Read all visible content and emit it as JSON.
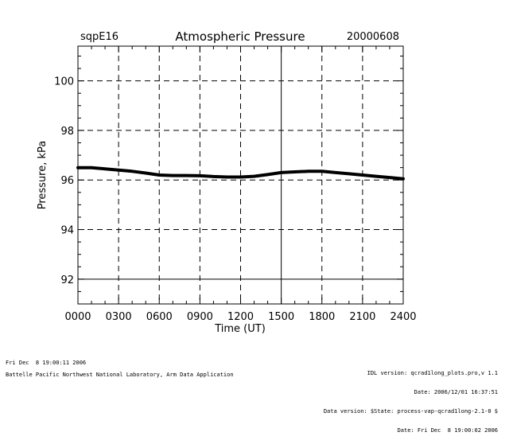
{
  "chart_data": {
    "type": "line",
    "site": "sqpE16",
    "title": "Atmospheric Pressure",
    "date": "20000608",
    "xlabel": "Time (UT)",
    "ylabel": "Pressure, kPa",
    "xlim": [
      0,
      24
    ],
    "ylim": [
      91.0,
      101.4
    ],
    "x_ticks": [
      0,
      3,
      6,
      9,
      12,
      15,
      18,
      21,
      24
    ],
    "x_tick_labels": [
      "0000",
      "0300",
      "0600",
      "0900",
      "1200",
      "1500",
      "1800",
      "2100",
      "2400"
    ],
    "y_ticks": [
      92,
      94,
      96,
      98,
      100
    ],
    "y_tick_labels": [
      "92",
      "94",
      "96",
      "98",
      "100"
    ],
    "grid": "dashed",
    "series": [
      {
        "x": [
          0,
          1,
          2,
          3,
          4,
          5,
          6,
          7,
          8,
          9,
          10,
          11,
          12,
          13,
          14,
          15,
          16,
          17,
          18,
          19,
          20,
          21,
          22,
          23,
          24
        ],
        "y": [
          96.5,
          96.5,
          96.45,
          96.4,
          96.35,
          96.28,
          96.2,
          96.18,
          96.18,
          96.17,
          96.14,
          96.12,
          96.12,
          96.15,
          96.22,
          96.3,
          96.33,
          96.35,
          96.35,
          96.3,
          96.25,
          96.2,
          96.15,
          96.1,
          96.05
        ],
        "color": "#000000"
      }
    ]
  },
  "footer": {
    "left_line1": "Fri Dec  8 19:00:11 2006",
    "left_line2": "Battelle Pacific Northwest National Laboratory, Arm Data Application",
    "right_line1": "IDL version: qcrad1long_plots.pro,v 1.1",
    "right_line2": "Date: 2006/12/01 16:37:51",
    "right_line3": "Data version: $State: process-vap-qcrad1long-2.1-0 $",
    "right_line4": "Date: Fri Dec  8 19:00:02 2006"
  }
}
